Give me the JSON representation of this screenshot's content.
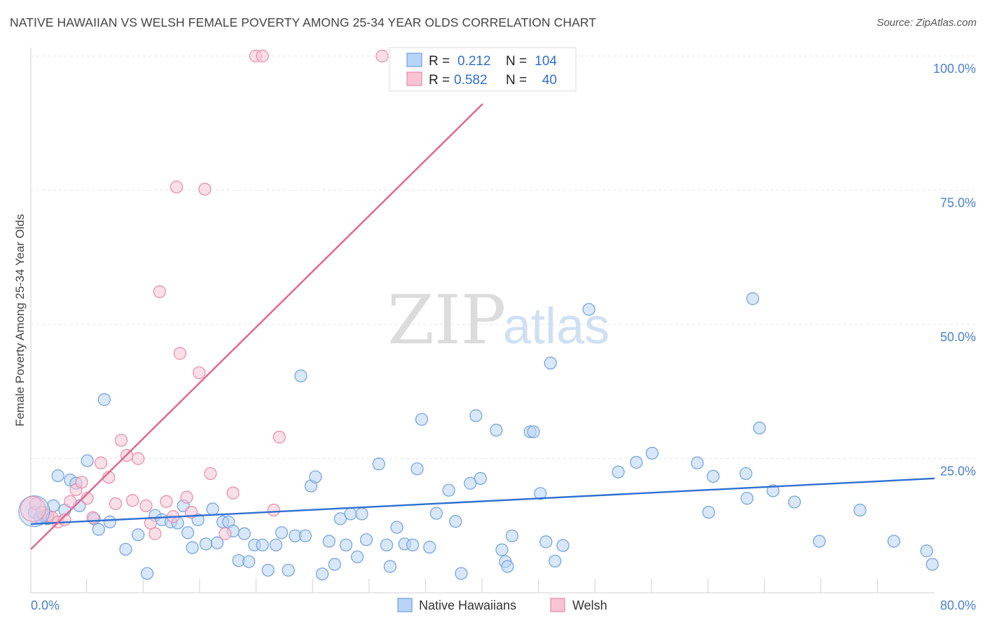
{
  "title": "NATIVE HAWAIIAN VS WELSH FEMALE POVERTY AMONG 25-34 YEAR OLDS CORRELATION CHART",
  "source": "Source: ZipAtlas.com",
  "watermark": {
    "zip": "ZIP",
    "atlas": "atlas"
  },
  "legend": {
    "r_label": "R =",
    "n_label": "N =",
    "series": [
      {
        "r": "0.212",
        "n": "104",
        "fill": "#b8d4f6",
        "stroke": "#6fa0e0"
      },
      {
        "r": "0.582",
        "n": "40",
        "fill": "#f8c4d4",
        "stroke": "#e88aa8"
      }
    ]
  },
  "chart_data": {
    "type": "scatter",
    "title": "NATIVE HAWAIIAN VS WELSH FEMALE POVERTY AMONG 25-34 YEAR OLDS CORRELATION CHART",
    "xlabel": "",
    "ylabel": "Female Poverty Among 25-34 Year Olds",
    "xlim": [
      0,
      80
    ],
    "ylim": [
      0,
      100
    ],
    "x_tick_labels": [
      "0.0%",
      "80.0%"
    ],
    "y_ticks": [
      25,
      50,
      75,
      100
    ],
    "y_tick_labels": [
      "25.0%",
      "50.0%",
      "75.0%",
      "100.0%"
    ],
    "grid": true,
    "legend_position": "top-center",
    "series": [
      {
        "name": "Native Hawaiians",
        "color": "#6fa0e0",
        "fill": "#b8d4f6",
        "trend": {
          "x": [
            0,
            80
          ],
          "y": [
            12.8,
            21.3
          ],
          "color": "#2f6fd0"
        },
        "points": [
          [
            0.3,
            15.0
          ],
          [
            0.8,
            14.0
          ],
          [
            1.2,
            14.2
          ],
          [
            1.5,
            13.8
          ],
          [
            2.0,
            16.2
          ],
          [
            2.4,
            21.8
          ],
          [
            3.0,
            15.4
          ],
          [
            3.5,
            21.0
          ],
          [
            4.0,
            20.4
          ],
          [
            4.3,
            16.2
          ],
          [
            5.0,
            24.6
          ],
          [
            5.6,
            13.8
          ],
          [
            6.0,
            11.8
          ],
          [
            6.5,
            36.0
          ],
          [
            7.0,
            13.2
          ],
          [
            8.4,
            8.1
          ],
          [
            9.5,
            10.8
          ],
          [
            10.3,
            3.6
          ],
          [
            11.0,
            14.4
          ],
          [
            11.6,
            13.6
          ],
          [
            12.4,
            13.2
          ],
          [
            13.0,
            13.0
          ],
          [
            13.5,
            16.2
          ],
          [
            13.9,
            11.2
          ],
          [
            14.3,
            8.4
          ],
          [
            14.8,
            13.6
          ],
          [
            15.5,
            9.1
          ],
          [
            16.1,
            15.6
          ],
          [
            16.5,
            9.3
          ],
          [
            17.0,
            13.2
          ],
          [
            17.5,
            13.2
          ],
          [
            17.9,
            11.5
          ],
          [
            18.4,
            6.0
          ],
          [
            18.9,
            11.0
          ],
          [
            19.3,
            5.8
          ],
          [
            19.8,
            8.9
          ],
          [
            20.5,
            8.9
          ],
          [
            21.0,
            4.2
          ],
          [
            21.7,
            8.9
          ],
          [
            22.2,
            11.2
          ],
          [
            22.8,
            4.2
          ],
          [
            23.4,
            10.6
          ],
          [
            23.9,
            40.4
          ],
          [
            24.3,
            10.6
          ],
          [
            24.8,
            19.9
          ],
          [
            25.2,
            21.6
          ],
          [
            25.8,
            3.5
          ],
          [
            26.4,
            9.6
          ],
          [
            26.9,
            5.3
          ],
          [
            27.4,
            13.8
          ],
          [
            27.9,
            8.9
          ],
          [
            28.3,
            14.7
          ],
          [
            28.9,
            6.7
          ],
          [
            29.3,
            14.7
          ],
          [
            29.7,
            9.9
          ],
          [
            30.8,
            24.0
          ],
          [
            31.5,
            8.9
          ],
          [
            31.8,
            4.9
          ],
          [
            32.4,
            12.2
          ],
          [
            33.1,
            9.1
          ],
          [
            33.8,
            8.9
          ],
          [
            34.2,
            23.1
          ],
          [
            34.6,
            32.3
          ],
          [
            35.3,
            8.5
          ],
          [
            35.9,
            14.8
          ],
          [
            37.0,
            19.1
          ],
          [
            37.6,
            13.3
          ],
          [
            38.1,
            3.6
          ],
          [
            38.9,
            20.4
          ],
          [
            39.4,
            33.0
          ],
          [
            39.8,
            21.3
          ],
          [
            41.2,
            30.3
          ],
          [
            41.7,
            8.0
          ],
          [
            42.0,
            5.8
          ],
          [
            42.2,
            4.9
          ],
          [
            42.6,
            10.6
          ],
          [
            44.2,
            30.0
          ],
          [
            44.5,
            30.0
          ],
          [
            45.1,
            18.5
          ],
          [
            45.6,
            9.5
          ],
          [
            46.0,
            42.8
          ],
          [
            46.4,
            5.9
          ],
          [
            47.1,
            8.8
          ],
          [
            49.4,
            52.8
          ],
          [
            52.0,
            22.5
          ],
          [
            53.6,
            24.3
          ],
          [
            55.0,
            26.0
          ],
          [
            59.0,
            24.2
          ],
          [
            60.0,
            15.0
          ],
          [
            60.4,
            21.7
          ],
          [
            63.3,
            22.2
          ],
          [
            63.4,
            17.6
          ],
          [
            63.9,
            54.8
          ],
          [
            64.5,
            30.7
          ],
          [
            65.7,
            19.0
          ],
          [
            67.6,
            16.9
          ],
          [
            69.8,
            9.6
          ],
          [
            73.4,
            15.4
          ],
          [
            76.4,
            9.6
          ],
          [
            79.3,
            7.8
          ],
          [
            79.8,
            5.3
          ]
        ]
      },
      {
        "name": "Welsh",
        "color": "#e88aa8",
        "fill": "#f8c4d4",
        "trend": {
          "x": [
            0,
            40
          ],
          "y": [
            8.1,
            91.1
          ],
          "color": "#e3628a"
        },
        "points": [
          [
            0.4,
            16.6
          ],
          [
            1.0,
            15.0
          ],
          [
            1.5,
            14.4
          ],
          [
            1.9,
            14.0
          ],
          [
            2.4,
            13.2
          ],
          [
            3.0,
            13.6
          ],
          [
            3.5,
            17.0
          ],
          [
            4.0,
            19.2
          ],
          [
            4.5,
            20.6
          ],
          [
            5.0,
            17.6
          ],
          [
            5.5,
            14.0
          ],
          [
            6.2,
            24.2
          ],
          [
            6.9,
            21.5
          ],
          [
            7.5,
            16.6
          ],
          [
            8.0,
            28.4
          ],
          [
            8.5,
            25.6
          ],
          [
            9.0,
            17.2
          ],
          [
            9.5,
            25.0
          ],
          [
            10.2,
            16.2
          ],
          [
            10.6,
            13.0
          ],
          [
            11.0,
            11.0
          ],
          [
            11.4,
            56.1
          ],
          [
            12.0,
            17.0
          ],
          [
            12.6,
            14.2
          ],
          [
            12.9,
            75.6
          ],
          [
            13.2,
            44.6
          ],
          [
            13.8,
            17.8
          ],
          [
            14.2,
            15.0
          ],
          [
            14.9,
            41.0
          ],
          [
            15.4,
            75.2
          ],
          [
            15.9,
            22.2
          ],
          [
            17.2,
            11.0
          ],
          [
            17.9,
            18.6
          ],
          [
            19.9,
            100.0
          ],
          [
            20.5,
            100.0
          ],
          [
            21.5,
            15.4
          ],
          [
            22.0,
            29.0
          ],
          [
            31.1,
            100.0
          ]
        ]
      }
    ]
  },
  "bottom_legend": [
    {
      "label": "Native Hawaiians",
      "fill": "#b8d4f6",
      "stroke": "#6fa0e0"
    },
    {
      "label": "Welsh",
      "fill": "#f8c4d4",
      "stroke": "#e88aa8"
    }
  ]
}
